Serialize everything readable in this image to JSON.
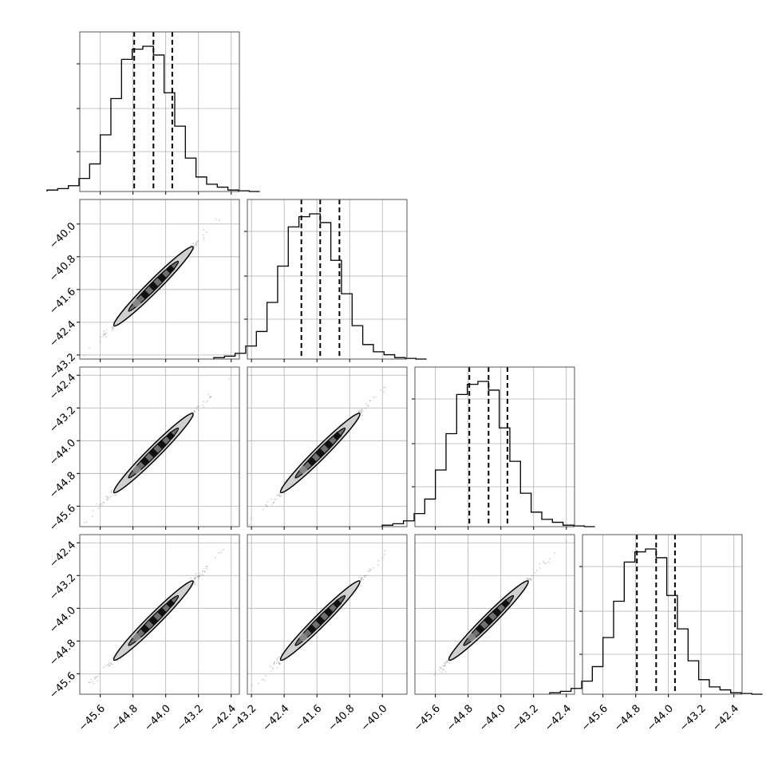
{
  "chart_data": {
    "type": "corner",
    "title": "",
    "parameters": [
      {
        "name": "",
        "range": [
          -46.1,
          -42.2
        ],
        "ticks": [
          "−45.6",
          "−44.8",
          "−44.0",
          "−43.2",
          "−42.4"
        ],
        "tick_values": [
          -45.6,
          -44.8,
          -44.0,
          -43.2,
          -42.4
        ],
        "quantiles": [
          -44.77,
          -44.3,
          -43.84
        ]
      },
      {
        "name": "",
        "range": [
          -43.3,
          -39.4
        ],
        "ticks": [
          "−43.2",
          "−42.4",
          "−41.6",
          "−40.8",
          "−40.0"
        ],
        "tick_values": [
          -43.2,
          -42.4,
          -41.6,
          -40.8,
          -40.0
        ],
        "quantiles": [
          -41.98,
          -41.52,
          -41.05
        ]
      },
      {
        "name": "",
        "range": [
          -46.1,
          -42.2
        ],
        "ticks": [
          "−45.6",
          "−44.8",
          "−44.0",
          "−43.2",
          "−42.4"
        ],
        "tick_values": [
          -45.6,
          -44.8,
          -44.0,
          -43.2,
          -42.4
        ],
        "quantiles": [
          -44.77,
          -44.3,
          -43.84
        ]
      },
      {
        "name": "",
        "range": [
          -46.1,
          -42.2
        ],
        "ticks": [
          "−45.6",
          "−44.8",
          "−44.0",
          "−43.2",
          "−42.4"
        ],
        "tick_values": [
          -45.6,
          -44.8,
          -44.0,
          -43.2,
          -42.4
        ],
        "quantiles": [
          -44.77,
          -44.3,
          -43.84
        ]
      }
    ],
    "histogram_relative_heights": [
      0.01,
      0.02,
      0.04,
      0.09,
      0.19,
      0.39,
      0.64,
      0.91,
      0.98,
      1.0,
      0.94,
      0.68,
      0.45,
      0.23,
      0.1,
      0.05,
      0.03,
      0.01,
      0.005,
      0.0
    ],
    "correlation_slope": 1.0,
    "grid": true,
    "line_color": "#000000",
    "grid_color": "#b0b0b0",
    "sample_color": "#444444"
  }
}
